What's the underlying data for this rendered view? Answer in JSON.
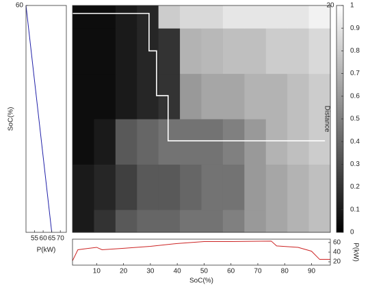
{
  "chart_data": [
    {
      "type": "line",
      "xlabel": "P(kW)",
      "ylabel": "SoC(%)",
      "xlim": [
        50,
        73.5
      ],
      "xticks": [
        55,
        60,
        65,
        70
      ],
      "ylim": [
        0,
        60
      ],
      "yticks": [
        60
      ],
      "series": [
        {
          "color": "#1f1fa8",
          "x": [
            50,
            52.5,
            55,
            57.5,
            60,
            62.5,
            65
          ],
          "values": [
            60,
            50,
            40,
            30,
            20,
            10,
            0
          ]
        }
      ]
    },
    {
      "type": "heatmap",
      "ylabel": "Distance",
      "y_axis_location": "right",
      "xlim": [
        1,
        97
      ],
      "ylim": [
        0,
        20
      ],
      "yticks": [
        20
      ],
      "xbins": [
        1,
        9,
        17,
        25,
        33,
        41,
        49,
        57,
        65,
        73,
        81,
        89,
        97
      ],
      "ybins": [
        0,
        2,
        6,
        10,
        14,
        18,
        20
      ],
      "values": [
        [
          0.1,
          0.2,
          0.35,
          0.4,
          0.4,
          0.45,
          0.45,
          0.5,
          0.6,
          0.65,
          0.7,
          0.75
        ],
        [
          0.1,
          0.15,
          0.25,
          0.35,
          0.35,
          0.4,
          0.45,
          0.45,
          0.6,
          0.65,
          0.7,
          0.75
        ],
        [
          0.05,
          0.1,
          0.35,
          0.4,
          0.45,
          0.45,
          0.45,
          0.5,
          0.6,
          0.7,
          0.75,
          0.8
        ],
        [
          0.05,
          0.05,
          0.1,
          0.15,
          0.2,
          0.6,
          0.65,
          0.65,
          0.7,
          0.7,
          0.75,
          0.8
        ],
        [
          0.05,
          0.05,
          0.1,
          0.15,
          0.2,
          0.7,
          0.72,
          0.75,
          0.75,
          0.8,
          0.8,
          0.85
        ],
        [
          0.05,
          0.05,
          0.1,
          0.15,
          0.8,
          0.85,
          0.85,
          0.9,
          0.9,
          0.9,
          0.9,
          0.95
        ]
      ],
      "colormap": "gray",
      "clim": [
        0,
        1
      ],
      "cticks": [
        0,
        0.1,
        0.2,
        0.3,
        0.4,
        0.5,
        0.6,
        0.7,
        0.8,
        0.9,
        1
      ],
      "series": [
        {
          "color": "#ffffff",
          "x": [
            1,
            29.5,
            29.5,
            32.3,
            32.3,
            36.6,
            36.6,
            95
          ],
          "values": [
            19.3,
            19.3,
            16.0,
            16.0,
            12.05,
            12.05,
            8.07,
            8.07
          ]
        }
      ]
    },
    {
      "type": "line",
      "xlabel": "SoC(%)",
      "ylabel": "P(kW)",
      "y_axis_location": "right",
      "xlim": [
        1,
        97
      ],
      "xticks": [
        10,
        20,
        30,
        40,
        50,
        60,
        70,
        80,
        90
      ],
      "ylim": [
        13,
        67
      ],
      "yticks": [
        20,
        40,
        60
      ],
      "series": [
        {
          "color": "#cc2222",
          "x": [
            1,
            3,
            10,
            12,
            20,
            30,
            40,
            50,
            60,
            75,
            77,
            85,
            90,
            93,
            97
          ],
          "values": [
            22,
            45,
            50,
            45,
            48,
            52,
            58,
            62,
            62,
            63,
            53,
            50,
            42,
            25,
            25
          ]
        }
      ]
    }
  ]
}
